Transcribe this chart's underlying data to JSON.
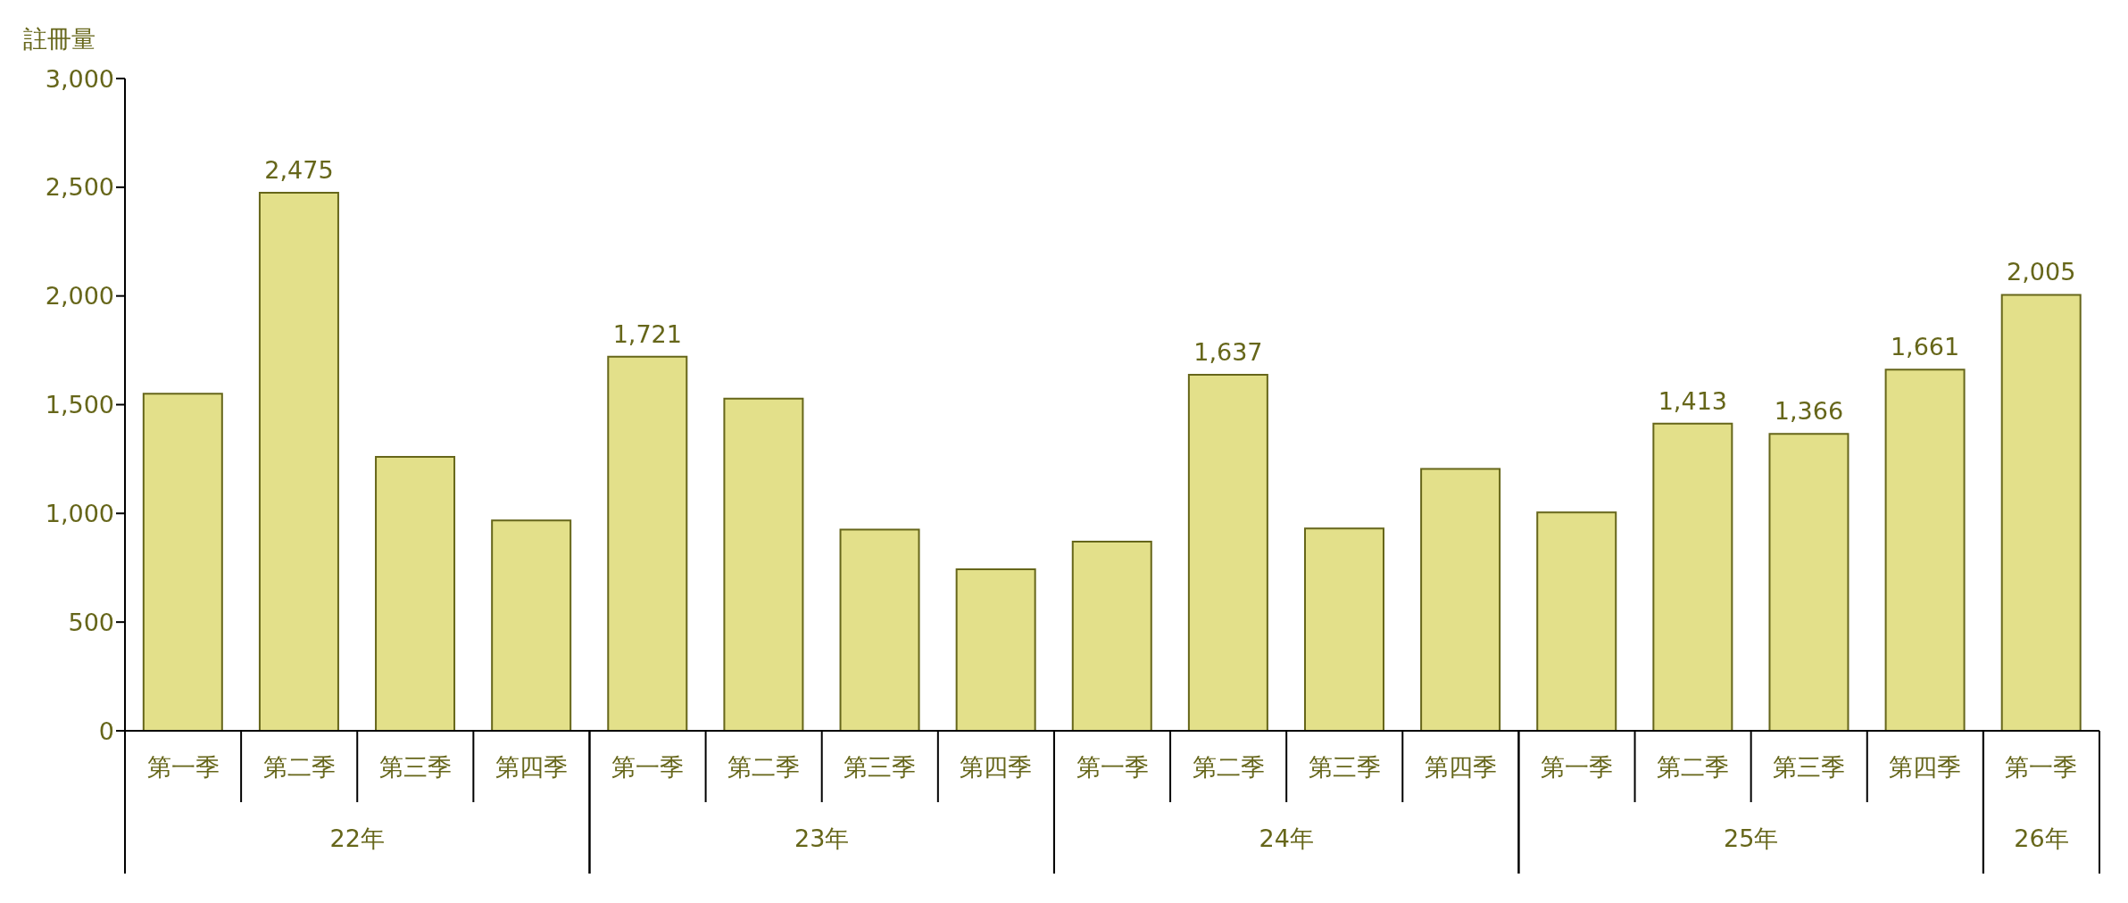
{
  "chart_data": {
    "type": "bar",
    "ylabel": "註冊量",
    "categories": [
      "第一季",
      "第二季",
      "第三季",
      "第四季",
      "第一季",
      "第二季",
      "第三季",
      "第四季",
      "第一季",
      "第二季",
      "第三季",
      "第四季",
      "第一季",
      "第二季",
      "第三季",
      "第四季",
      "第一季"
    ],
    "series": [
      {
        "color": "#e3e08a",
        "values": [
          1550,
          2475,
          1260,
          968,
          1721,
          1528,
          925,
          743,
          870,
          1637,
          931,
          1205,
          1004,
          1413,
          1366,
          1661,
          2005
        ],
        "value_labels": [
          null,
          "2,475",
          null,
          null,
          "1,721",
          null,
          null,
          null,
          null,
          "1,637",
          null,
          null,
          null,
          "1,413",
          "1,366",
          "1,661",
          "2,005"
        ]
      }
    ],
    "annotations": [
      "22年",
      "23年",
      "24年",
      "25年",
      "26年"
    ],
    "ylim": [
      0,
      3000
    ],
    "yticks": [
      {
        "value": 0,
        "label": "0"
      },
      {
        "value": 500,
        "label": "500"
      },
      {
        "value": 1000,
        "label": "1,000"
      },
      {
        "value": 1500,
        "label": "1,500"
      },
      {
        "value": 2000,
        "label": "2,000"
      },
      {
        "value": 2500,
        "label": "2,500"
      },
      {
        "value": 3000,
        "label": "3,000"
      }
    ],
    "grid": false,
    "legend": false
  }
}
